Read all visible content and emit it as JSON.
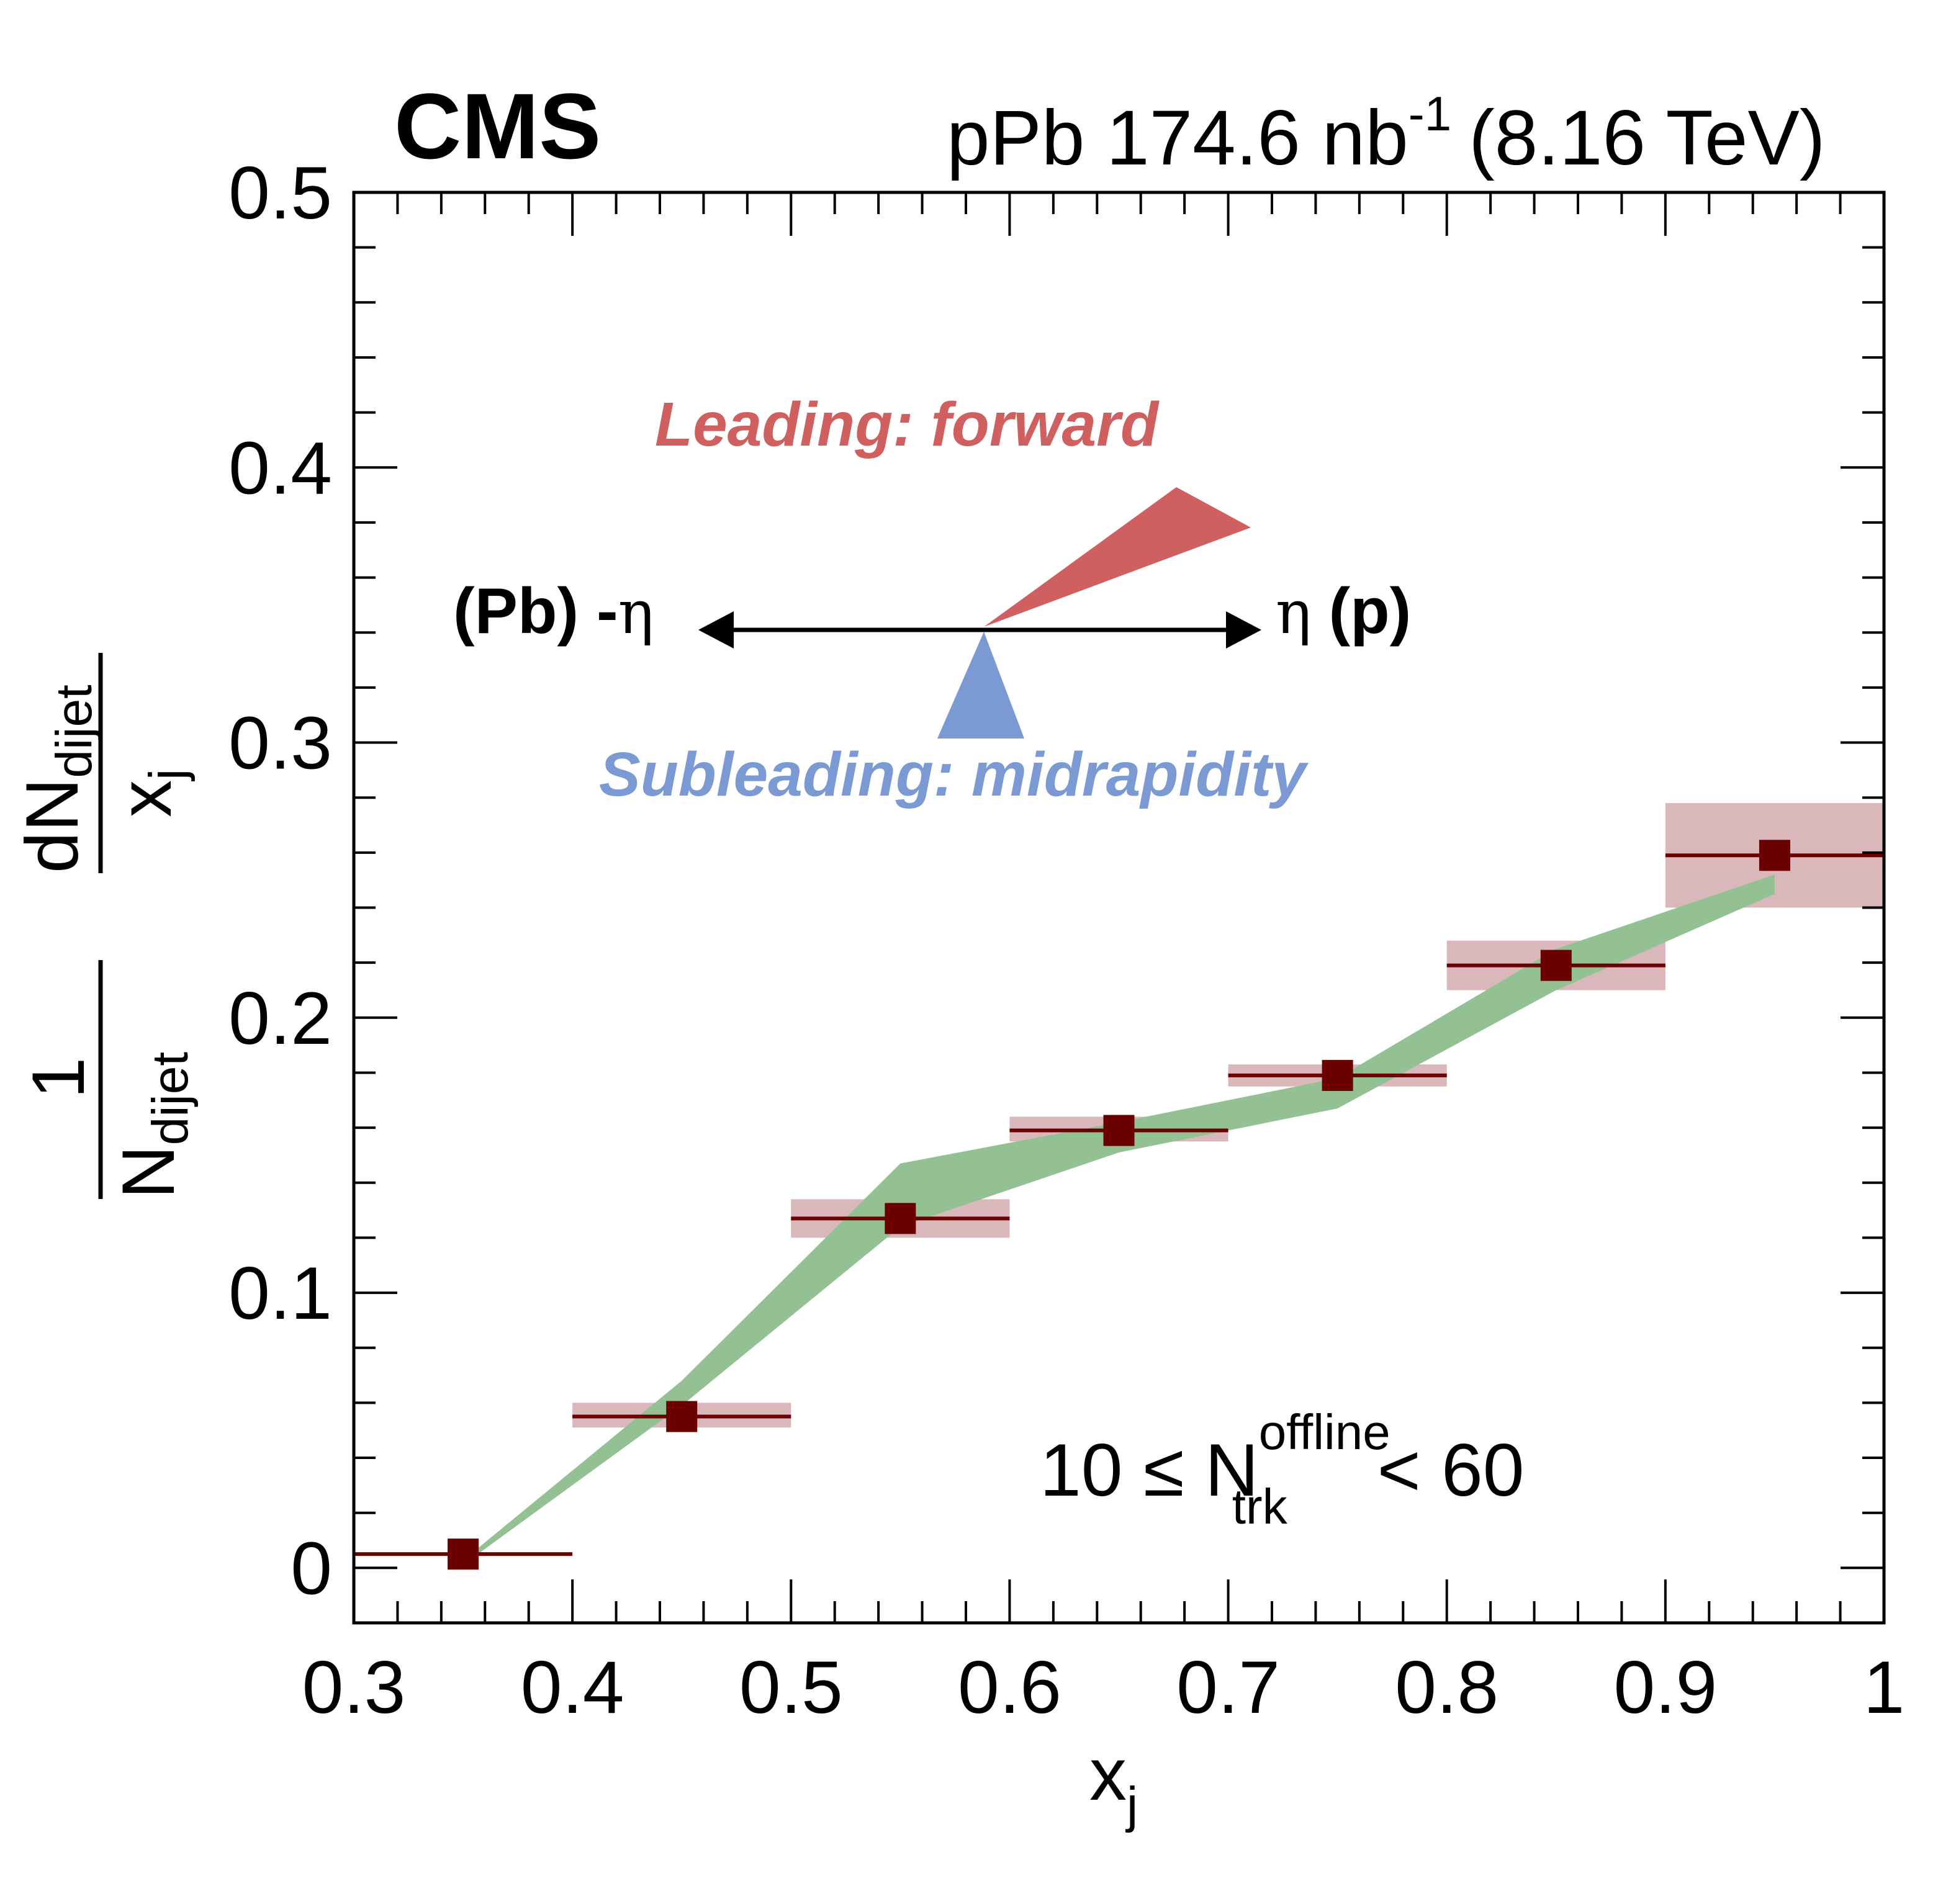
{
  "header": {
    "experiment": "CMS",
    "lumi_prefix": "pPb 174.6 nb",
    "lumi_exp": "-1",
    "energy": "(8.16 TeV)"
  },
  "ylabel": {
    "one": "1",
    "n": "N",
    "n_sub": "dijet",
    "dn": "dN",
    "dn_sub": "dijet",
    "x": "x",
    "x_sub": "j"
  },
  "xlabel": {
    "main": "x",
    "sub": "j"
  },
  "diagram": {
    "leading_label": "Leading: forward",
    "subleading_label": "Subleading: midrapidity",
    "left_label": "(Pb) -",
    "left_symbol": "η",
    "right_symbol": "η",
    "right_label": "(p)",
    "leading_color": "#d05f5f",
    "subleading_color": "#7b9ad4"
  },
  "selection": {
    "prefix": "10 ≤ N",
    "sup": "offline",
    "sub": "trk",
    "suffix": "< 60"
  },
  "colors": {
    "data": "#6b0000",
    "syst_box": "#d9b7ba",
    "theory_band": "#93c193",
    "frame": "#000000"
  },
  "chart_data": {
    "type": "scatter",
    "xlim": [
      0.3,
      1.0
    ],
    "ylim": [
      -0.02,
      0.5
    ],
    "x_ticks": [
      "0.3",
      "0.4",
      "0.5",
      "0.6",
      "0.7",
      "0.8",
      "0.9",
      "1"
    ],
    "x_tick_values": [
      0.3,
      0.4,
      0.5,
      0.6,
      0.7,
      0.8,
      0.9,
      1.0
    ],
    "y_ticks": [
      "0",
      "0.1",
      "0.2",
      "0.3",
      "0.4",
      "0.5"
    ],
    "y_tick_values": [
      0,
      0.1,
      0.2,
      0.3,
      0.4,
      0.5
    ],
    "grid": false,
    "data": {
      "x": [
        0.35,
        0.45,
        0.55,
        0.65,
        0.75,
        0.85,
        0.95
      ],
      "x_low": [
        0.3,
        0.4,
        0.5,
        0.6,
        0.7,
        0.8,
        0.9
      ],
      "x_high": [
        0.4,
        0.5,
        0.6,
        0.7,
        0.8,
        0.9,
        1.0
      ],
      "y": [
        0.005,
        0.055,
        0.127,
        0.159,
        0.179,
        0.219,
        0.259
      ],
      "syst_low": [
        0.005,
        0.051,
        0.12,
        0.155,
        0.175,
        0.21,
        0.24
      ],
      "syst_high": [
        0.005,
        0.06,
        0.134,
        0.164,
        0.183,
        0.228,
        0.278
      ]
    },
    "theory_band": {
      "x": [
        0.355,
        0.45,
        0.55,
        0.65,
        0.75,
        0.85,
        0.95
      ],
      "low": [
        0.004,
        0.059,
        0.124,
        0.151,
        0.167,
        0.21,
        0.245
      ],
      "high": [
        0.006,
        0.068,
        0.147,
        0.162,
        0.178,
        0.225,
        0.252
      ]
    }
  }
}
